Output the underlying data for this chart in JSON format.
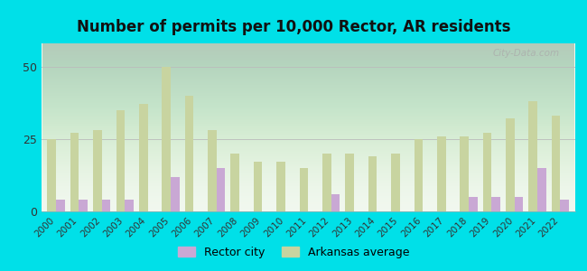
{
  "years": [
    2000,
    2001,
    2002,
    2003,
    2004,
    2005,
    2006,
    2007,
    2008,
    2009,
    2010,
    2011,
    2012,
    2013,
    2014,
    2015,
    2016,
    2017,
    2018,
    2019,
    2020,
    2021,
    2022
  ],
  "rector_city": [
    4,
    4,
    4,
    4,
    0,
    12,
    0,
    15,
    0,
    0,
    0,
    0,
    6,
    0,
    0,
    0,
    0,
    0,
    5,
    5,
    5,
    15,
    4
  ],
  "arkansas_avg": [
    25,
    27,
    28,
    35,
    37,
    50,
    40,
    28,
    20,
    17,
    17,
    15,
    20,
    20,
    19,
    20,
    25,
    26,
    26,
    27,
    32,
    38,
    33
  ],
  "rector_color": "#c9a8d4",
  "arkansas_color": "#c8d4a0",
  "bg_color_outer": "#00e0e8",
  "title": "Number of permits per 10,000 Rector, AR residents",
  "title_fontsize": 12,
  "ylabel_ticks": [
    0,
    25,
    50
  ],
  "ylim": [
    0,
    58
  ],
  "watermark": "City-Data.com",
  "legend_rector": "Rector city",
  "legend_arkansas": "Arkansas average",
  "bar_width": 0.38,
  "plot_bg_top": "#d4ead4",
  "plot_bg_bottom": "#f0f7ee"
}
